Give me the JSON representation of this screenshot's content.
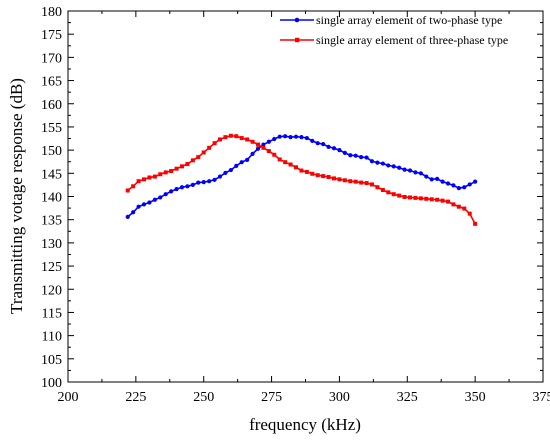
{
  "chart_data": {
    "type": "line",
    "xlabel": "frequency (kHz)",
    "ylabel": "Transmitting votage response (dB)",
    "xlim": [
      200,
      375
    ],
    "ylim": [
      100,
      180
    ],
    "x_ticks": [
      200,
      225,
      250,
      275,
      300,
      325,
      350,
      375
    ],
    "y_ticks": [
      100,
      105,
      110,
      115,
      120,
      125,
      130,
      135,
      140,
      145,
      150,
      155,
      160,
      165,
      170,
      175,
      180
    ],
    "legend_position": "top-right",
    "grid": false,
    "series": [
      {
        "name": "single array element of two-phase type",
        "color": "#0000ff",
        "marker": "circle",
        "x": [
          222,
          224,
          226,
          228,
          230,
          232,
          234,
          236,
          238,
          240,
          242,
          244,
          246,
          248,
          250,
          252,
          254,
          256,
          258,
          260,
          262,
          264,
          266,
          268,
          270,
          272,
          274,
          276,
          278,
          280,
          282,
          284,
          286,
          288,
          290,
          292,
          294,
          296,
          298,
          300,
          302,
          304,
          306,
          308,
          310,
          312,
          314,
          316,
          318,
          320,
          322,
          324,
          326,
          328,
          330,
          332,
          334,
          336,
          338,
          340,
          342,
          344,
          346,
          348,
          350
        ],
        "values": [
          135.6,
          136.6,
          137.8,
          138.3,
          138.7,
          139.3,
          139.8,
          140.5,
          141.1,
          141.6,
          142.0,
          142.2,
          142.5,
          143.0,
          143.1,
          143.3,
          143.6,
          144.3,
          145.1,
          145.7,
          146.6,
          147.4,
          147.9,
          149.2,
          150.3,
          151.2,
          151.8,
          152.4,
          152.9,
          153.0,
          152.8,
          152.9,
          152.8,
          152.6,
          152.0,
          151.5,
          151.3,
          150.7,
          150.4,
          150.0,
          149.4,
          148.9,
          148.8,
          148.5,
          148.4,
          147.6,
          147.3,
          147.1,
          146.7,
          146.5,
          146.2,
          145.8,
          145.6,
          145.2,
          145.0,
          144.3,
          143.7,
          143.8,
          143.2,
          142.8,
          142.4,
          141.8,
          142.0,
          142.6,
          143.2
        ]
      },
      {
        "name": "single array element of three-phase type",
        "color": "#ff0000",
        "marker": "square",
        "x": [
          222,
          224,
          226,
          228,
          230,
          232,
          234,
          236,
          238,
          240,
          242,
          244,
          246,
          248,
          250,
          252,
          254,
          256,
          258,
          260,
          262,
          264,
          266,
          268,
          270,
          272,
          274,
          276,
          278,
          280,
          282,
          284,
          286,
          288,
          290,
          292,
          294,
          296,
          298,
          300,
          302,
          304,
          306,
          308,
          310,
          312,
          314,
          316,
          318,
          320,
          322,
          324,
          326,
          328,
          330,
          332,
          334,
          336,
          338,
          340,
          342,
          344,
          346,
          348,
          350
        ],
        "values": [
          141.3,
          142.2,
          143.3,
          143.7,
          144.1,
          144.3,
          144.8,
          145.2,
          145.5,
          146.0,
          146.5,
          147.0,
          147.8,
          148.5,
          149.5,
          150.5,
          151.5,
          152.3,
          152.8,
          153.1,
          153.0,
          152.6,
          152.3,
          151.8,
          151.2,
          150.5,
          149.8,
          149.0,
          148.0,
          147.4,
          146.9,
          146.3,
          145.6,
          145.3,
          144.9,
          144.6,
          144.4,
          144.2,
          143.9,
          143.7,
          143.5,
          143.3,
          143.2,
          143.0,
          142.9,
          142.6,
          142.0,
          141.4,
          140.9,
          140.5,
          140.2,
          139.9,
          139.8,
          139.7,
          139.6,
          139.5,
          139.4,
          139.3,
          139.1,
          138.9,
          138.3,
          137.8,
          137.4,
          136.3,
          134.1
        ]
      }
    ]
  }
}
